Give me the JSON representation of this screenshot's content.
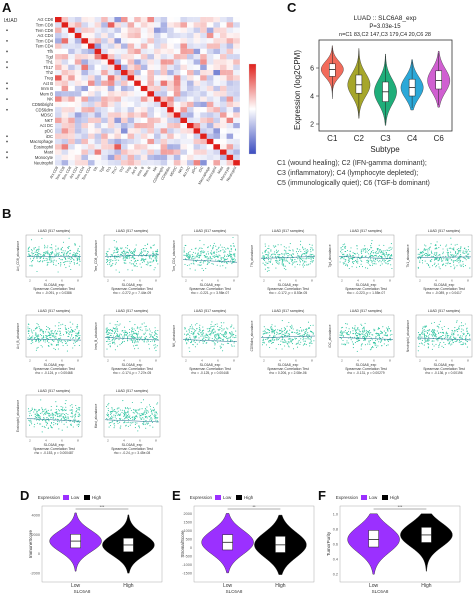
{
  "panels": {
    "a": {
      "letter": "A",
      "corner_label": "LUAD",
      "cell_types": [
        "Act CD8",
        "Tcm CD8",
        "Tem CD8",
        "Act CD4",
        "Tcm CD4",
        "Tem CD4",
        "Tfh",
        "Tgd",
        "Th1",
        "Th17",
        "Th2",
        "Treg",
        "Act B",
        "Imm B",
        "Mem B",
        "NK",
        "CD56bright",
        "CD56dim",
        "MDSC",
        "NKT",
        "Act DC",
        "pDC",
        "iDC",
        "Macrophage",
        "Eosinophil",
        "Mast",
        "Monocyte",
        "Neutrophil"
      ],
      "star_rows": [
        0,
        2,
        4,
        6,
        8,
        9,
        12,
        13,
        15,
        17,
        22,
        23,
        25,
        26
      ]
    },
    "b": {
      "letter": "B",
      "plot_title": "LUAD (517 samples)",
      "xlabel": "SLC6A8_exp",
      "method": "Spearman Correlation Test",
      "plots": [
        {
          "ylabel": "Act_CD8_abundance",
          "stat": "rho = -0.091, p = 0.0386"
        },
        {
          "ylabel": "Tem_CD8_abundance",
          "stat": "rho = -0.272, p = 7.44e-09"
        },
        {
          "ylabel": "Tcm_CD4_abundance",
          "stat": "rho = -0.221, p = 3.98e-07"
        },
        {
          "ylabel": "Tfh_abundance",
          "stat": "rho = -0.172, p = 8.53e-05"
        },
        {
          "ylabel": "Tgd_abundance",
          "stat": "rho = -0.223, p = 1.55e-07"
        },
        {
          "ylabel": "Th1_abundance",
          "stat": "rho = -0.089, p = 0.0417"
        },
        {
          "ylabel": "Act_B_abundance",
          "stat": "rho = -0.124, p = 0.00468"
        },
        {
          "ylabel": "Imm_B_abundance",
          "stat": "rho = -0.174, p = 7.27e-05"
        },
        {
          "ylabel": "NK_abundance",
          "stat": "rho = -0.125, p = 0.00448"
        },
        {
          "ylabel": "CD56dim_abundance",
          "stat": "rho = 0.206, p = 2.08e-06"
        },
        {
          "ylabel": "iDC_abundance",
          "stat": "rho = -0.131, p = 0.00279"
        },
        {
          "ylabel": "Neutrophil_abundance",
          "stat": "rho = -0.136, p = 0.00196"
        },
        {
          "ylabel": "Eosinophil_abundance",
          "stat": "rho = -0.153, p = 0.000487"
        },
        {
          "ylabel": "Mast_abundance",
          "stat": "rho = -0.24, p = 3.45e-08"
        }
      ]
    },
    "c": {
      "letter": "C",
      "chart_title": "LUAD :: SLC6A8_exp",
      "pvalue": "P=3.03e-15",
      "counts": "n=C1 83,C2 147,C3 179,C4 20,C6 28",
      "ylabel": "Expression (log2CPM)",
      "xlabel": "Subtype",
      "y_ticks": [
        "2",
        "4",
        "6"
      ],
      "legend_lines": [
        "C1 (wound healing); C2 (IFN-gamma dominant);",
        "C3 (inflammatory); C4 (lymphocyte depleted);",
        "C5 (immunologically quiet); C6 (TGF-b dominant)"
      ]
    },
    "d": {
      "letter": "D",
      "ylabel": "ImmuneScore",
      "y_ticks": [
        "-2000",
        "0",
        "2000",
        "4000"
      ],
      "sig": "***"
    },
    "e": {
      "letter": "E",
      "ylabel": "StromalScore",
      "y_ticks": [
        "-1500",
        "-1000",
        "-500",
        "0",
        "500",
        "1000",
        "1500",
        "2000"
      ],
      "sig": "**"
    },
    "f": {
      "letter": "F",
      "ylabel": "TumorPurity",
      "y_ticks": [
        "0.2",
        "0.4",
        "0.6",
        "0.8",
        "1.0"
      ],
      "sig": "***"
    },
    "def_common": {
      "legend_title": "Expression",
      "low_label": "Low",
      "high_label": "High",
      "xlabel": "SLC6A8",
      "low_color": "#9b30ff",
      "high_color": "#000000"
    }
  },
  "chart_data": [
    {
      "type": "heatmap",
      "rows": [
        "Act CD8",
        "Tcm CD8",
        "Tem CD8",
        "Act CD4",
        "Tcm CD4",
        "Tem CD4",
        "Tfh",
        "Tgd",
        "Th1",
        "Th17",
        "Th2",
        "Treg",
        "Act B",
        "Imm B",
        "Mem B",
        "NK",
        "CD56bright",
        "CD56dim",
        "MDSC",
        "NKT",
        "Act DC",
        "pDC",
        "iDC",
        "Macrophage",
        "Eosinophil",
        "Mast",
        "Monocyte",
        "Neutrophil"
      ],
      "n_columns": 28,
      "color_scale": [
        "#3b4cc0",
        "#ffffff",
        "#e0201b"
      ],
      "value_range": [
        -1,
        1
      ]
    },
    {
      "type": "scatter",
      "title": "LUAD (517 samples)",
      "xlabel": "SLC6A8_exp",
      "panels": 14,
      "point_color": "#2ec4a0",
      "x_ticks": [
        2,
        4,
        6,
        8
      ]
    },
    {
      "type": "violin",
      "title": "LUAD :: SLC6A8_exp",
      "xlabel": "Subtype",
      "ylabel": "Expression (log2CPM)",
      "categories": [
        "C1",
        "C2",
        "C3",
        "C4",
        "C6"
      ],
      "medians": [
        5.9,
        4.8,
        4.3,
        4.6,
        5.1
      ],
      "q1": [
        5.4,
        4.2,
        3.6,
        4.0,
        4.5
      ],
      "q3": [
        6.3,
        5.5,
        5.0,
        5.2,
        5.8
      ],
      "min": [
        3.8,
        2.4,
        1.9,
        3.0,
        3.2
      ],
      "max": [
        7.6,
        7.4,
        7.0,
        6.6,
        7.2
      ],
      "colors": [
        "#f26b5b",
        "#a6a62a",
        "#1fae7a",
        "#2ba8d8",
        "#d05fd1"
      ],
      "ylim": [
        1.5,
        8.0
      ]
    },
    {
      "type": "violin",
      "ylabel": "ImmuneScore",
      "xlabel": "SLC6A8",
      "categories": [
        "Low",
        "High"
      ],
      "medians": [
        1300,
        900
      ],
      "q1": [
        600,
        200
      ],
      "q3": [
        2000,
        1600
      ],
      "min": [
        -1800,
        -2000
      ],
      "max": [
        4200,
        4000
      ],
      "ylim": [
        -2500,
        4500
      ]
    },
    {
      "type": "violin",
      "ylabel": "StromalScore",
      "xlabel": "SLC6A8",
      "categories": [
        "Low",
        "High"
      ],
      "medians": [
        300,
        150
      ],
      "q1": [
        -150,
        -300
      ],
      "q3": [
        750,
        650
      ],
      "min": [
        -1500,
        -1600
      ],
      "max": [
        2000,
        1900
      ],
      "ylim": [
        -1800,
        2200
      ]
    },
    {
      "type": "violin",
      "ylabel": "TumorPurity",
      "xlabel": "SLC6A8",
      "categories": [
        "Low",
        "High"
      ],
      "medians": [
        0.66,
        0.72
      ],
      "q1": [
        0.56,
        0.62
      ],
      "q3": [
        0.78,
        0.82
      ],
      "min": [
        0.2,
        0.24
      ],
      "max": [
        1.0,
        1.0
      ],
      "ylim": [
        0.15,
        1.05
      ]
    }
  ]
}
